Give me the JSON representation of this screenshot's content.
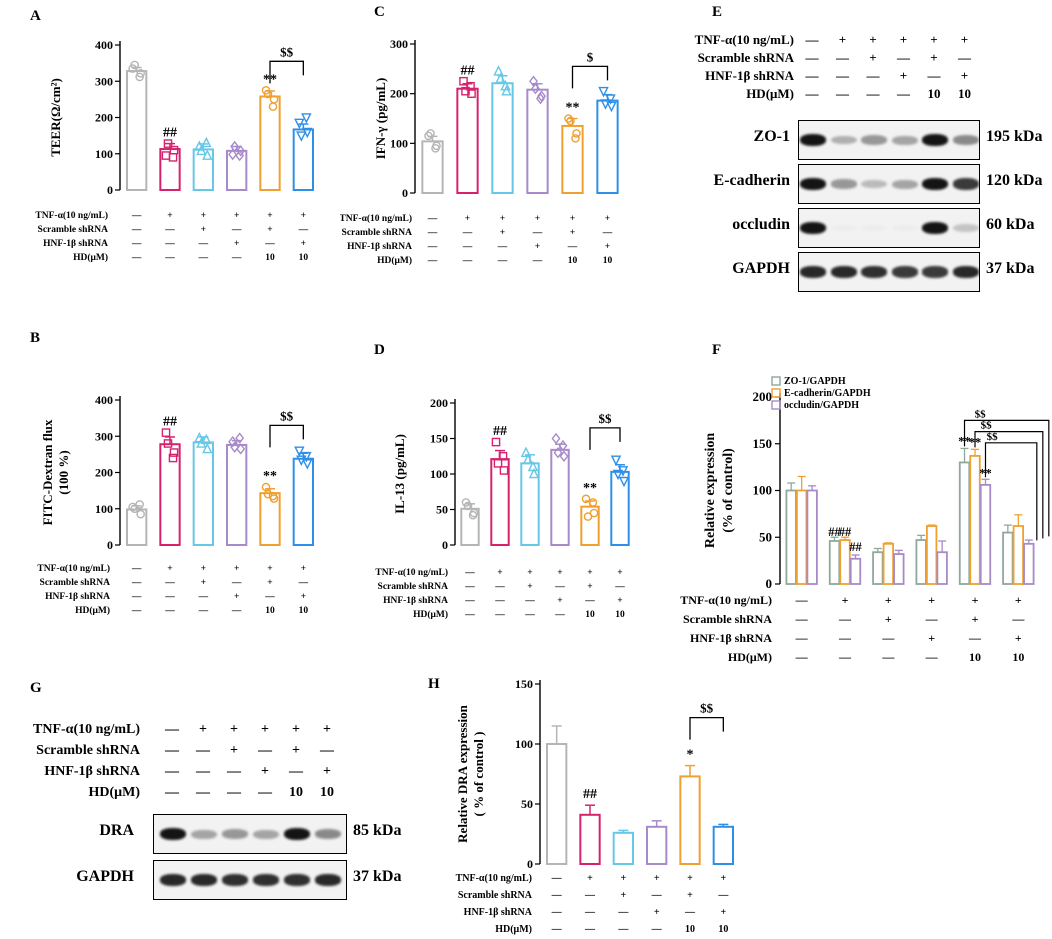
{
  "colors": {
    "control": "#b5b5b5",
    "tnf": "#d6226e",
    "scramble": "#67c7e6",
    "hnf": "#a78ac9",
    "hd_scramble": "#f0a030",
    "hd_hnf": "#2f8fe8",
    "zo1": "#8fa89a",
    "ecad": "#f0a030",
    "occl": "#a78ac9"
  },
  "conditions": {
    "rows": [
      {
        "label": "TNF-α(10 ng/mL)",
        "values": [
          "—",
          "+",
          "+",
          "+",
          "+",
          "+"
        ]
      },
      {
        "label": "Scramble shRNA",
        "values": [
          "—",
          "—",
          "+",
          "—",
          "+",
          "—"
        ]
      },
      {
        "label": "HNF-1β shRNA",
        "values": [
          "—",
          "—",
          "—",
          "+",
          "—",
          "+"
        ]
      },
      {
        "label": "HD(μM)",
        "values": [
          "—",
          "—",
          "—",
          "—",
          "10",
          "10"
        ]
      }
    ]
  },
  "blot_e": {
    "label": "E",
    "header": {
      "rows": [
        {
          "label": "TNF-α(10 ng/mL)",
          "values": [
            "—",
            "+",
            "+",
            "+",
            "+",
            "+"
          ]
        },
        {
          "label": "Scramble shRNA",
          "values": [
            "—",
            "—",
            "+",
            "—",
            "+",
            "—"
          ]
        },
        {
          "label": "HNF-1β shRNA",
          "values": [
            "—",
            "—",
            "—",
            "+",
            "—",
            "+"
          ]
        },
        {
          "label": "HD(μM)",
          "values": [
            "—",
            "—",
            "—",
            "—",
            "10",
            "10"
          ]
        }
      ]
    },
    "rows": [
      {
        "protein": "ZO-1",
        "size": "195 kDa",
        "intensity": [
          0.95,
          0.45,
          0.55,
          0.5,
          0.95,
          0.6
        ]
      },
      {
        "protein": "E-cadherin",
        "size": "120 kDa",
        "intensity": [
          0.95,
          0.55,
          0.4,
          0.5,
          0.95,
          0.85
        ]
      },
      {
        "protein": "occludin",
        "size": "60 kDa",
        "intensity": [
          0.95,
          0.05,
          0.05,
          0.05,
          0.95,
          0.35
        ]
      },
      {
        "protein": "GAPDH",
        "size": "37 kDa",
        "intensity": [
          0.9,
          0.9,
          0.88,
          0.85,
          0.85,
          0.9
        ]
      }
    ]
  },
  "blot_g": {
    "label": "G",
    "header": {
      "rows": [
        {
          "label": "TNF-α(10 ng/mL)",
          "values": [
            "—",
            "+",
            "+",
            "+",
            "+",
            "+"
          ]
        },
        {
          "label": "Scramble shRNA",
          "values": [
            "—",
            "—",
            "+",
            "—",
            "+",
            "—"
          ]
        },
        {
          "label": "HNF-1β shRNA",
          "values": [
            "—",
            "—",
            "—",
            "+",
            "—",
            "+"
          ]
        },
        {
          "label": "HD(μM)",
          "values": [
            "—",
            "—",
            "—",
            "—",
            "10",
            "10"
          ]
        }
      ]
    },
    "rows": [
      {
        "protein": "DRA",
        "size": "85 kDa",
        "intensity": [
          0.95,
          0.5,
          0.55,
          0.5,
          0.95,
          0.6
        ]
      },
      {
        "protein": "GAPDH",
        "size": "37 kDa",
        "intensity": [
          0.9,
          0.9,
          0.88,
          0.88,
          0.88,
          0.9
        ]
      }
    ]
  },
  "chart_data": [
    {
      "panel": "A",
      "type": "bar",
      "ylabel": "TEER(Ω/cm²)",
      "ylim": [
        0,
        400
      ],
      "yticks": [
        0,
        100,
        200,
        300,
        400
      ],
      "values": [
        328,
        113,
        112,
        108,
        258,
        167
      ],
      "errors": [
        10,
        15,
        15,
        12,
        15,
        15
      ],
      "points": [
        [
          335,
          322,
          345,
          312
        ],
        [
          95,
          110,
          128,
          90
        ],
        [
          120,
          95,
          108,
          130
        ],
        [
          98,
          108,
          120,
          95
        ],
        [
          275,
          250,
          265,
          230
        ],
        [
          185,
          160,
          150,
          200
        ]
      ],
      "annotations": [
        {
          "bar": 1,
          "text": "##"
        },
        {
          "bar": 4,
          "text": "**"
        }
      ],
      "bracket": {
        "from": 4,
        "to": 5,
        "text": "$$",
        "y": 355
      }
    },
    {
      "panel": "B",
      "type": "bar",
      "ylabel": "FITC-Dextran  flux",
      "ylabel2": "(100 %)",
      "ylim": [
        0,
        400
      ],
      "yticks": [
        0,
        100,
        200,
        300,
        400
      ],
      "values": [
        98,
        278,
        283,
        276,
        143,
        238
      ],
      "errors": [
        10,
        20,
        15,
        12,
        12,
        15
      ],
      "points": [
        [
          105,
          85,
          100,
          112
        ],
        [
          310,
          255,
          280,
          240
        ],
        [
          295,
          265,
          280,
          290
        ],
        [
          285,
          265,
          270,
          295
        ],
        [
          160,
          128,
          140,
          135
        ],
        [
          260,
          225,
          235,
          245
        ]
      ],
      "annotations": [
        {
          "bar": 1,
          "text": "##"
        },
        {
          "bar": 4,
          "text": "**"
        }
      ],
      "bracket": {
        "from": 4,
        "to": 5,
        "text": "$$",
        "y": 330
      }
    },
    {
      "panel": "C",
      "type": "bar",
      "ylabel": "IFN-γ (pg/mL)",
      "ylim": [
        0,
        300
      ],
      "yticks": [
        0,
        100,
        200,
        300
      ],
      "values": [
        104,
        210,
        221,
        208,
        135,
        186
      ],
      "errors": [
        10,
        10,
        15,
        12,
        15,
        12
      ],
      "points": [
        [
          115,
          95,
          120,
          90
        ],
        [
          225,
          200,
          205,
          215
        ],
        [
          245,
          205,
          230,
          215
        ],
        [
          225,
          195,
          210,
          190
        ],
        [
          150,
          120,
          145,
          110
        ],
        [
          205,
          175,
          180,
          190
        ]
      ],
      "annotations": [
        {
          "bar": 1,
          "text": "##"
        },
        {
          "bar": 4,
          "text": "**"
        }
      ],
      "bracket": {
        "from": 4,
        "to": 5,
        "text": "$",
        "y": 255
      }
    },
    {
      "panel": "D",
      "type": "bar",
      "ylabel": "IL-13 (pg/mL)",
      "ylim": [
        0,
        200
      ],
      "yticks": [
        0,
        50,
        100,
        150,
        200
      ],
      "values": [
        51,
        121,
        115,
        134,
        54,
        103
      ],
      "errors": [
        7,
        12,
        12,
        8,
        8,
        10
      ],
      "points": [
        [
          60,
          45,
          55,
          42
        ],
        [
          145,
          105,
          115,
          125
        ],
        [
          130,
          100,
          120,
          110
        ],
        [
          150,
          125,
          130,
          140
        ],
        [
          65,
          45,
          40,
          60
        ],
        [
          120,
          90,
          100,
          105
        ]
      ],
      "annotations": [
        {
          "bar": 1,
          "text": "##"
        },
        {
          "bar": 4,
          "text": "**"
        }
      ],
      "bracket": {
        "from": 4,
        "to": 5,
        "text": "$$",
        "y": 165
      }
    },
    {
      "panel": "F",
      "type": "bar",
      "ylabel": "Relative expression",
      "ylabel2": "(% of control)",
      "ylim": [
        0,
        200
      ],
      "yticks": [
        0,
        50,
        100,
        150,
        200
      ],
      "legend": [
        "ZO-1/GAPDH",
        "E-cadherin/GAPDH",
        "occludin/GAPDH"
      ],
      "series": [
        {
          "name": "ZO-1/GAPDH",
          "values": [
            100,
            46,
            34,
            47,
            130,
            55
          ],
          "errors": [
            8,
            4,
            4,
            5,
            15,
            8
          ]
        },
        {
          "name": "E-cadherin/GAPDH",
          "values": [
            100,
            47,
            43,
            62,
            137,
            62
          ],
          "errors": [
            15,
            3,
            1,
            1,
            7,
            12
          ]
        },
        {
          "name": "occludin/GAPDH",
          "values": [
            100,
            27,
            32,
            34,
            106,
            43
          ],
          "errors": [
            5,
            4,
            4,
            12,
            6,
            4
          ]
        }
      ],
      "annotations": [
        {
          "group": 1,
          "series": 0,
          "text": "##"
        },
        {
          "group": 1,
          "series": 1,
          "text": "##"
        },
        {
          "group": 1,
          "series": 2,
          "text": "##"
        },
        {
          "group": 4,
          "series": 0,
          "text": "**"
        },
        {
          "group": 4,
          "series": 1,
          "text": "**"
        },
        {
          "group": 4,
          "series": 2,
          "text": "**"
        }
      ],
      "brackets": [
        {
          "text": "$$"
        },
        {
          "text": "$$"
        },
        {
          "text": "$$"
        }
      ]
    },
    {
      "panel": "H",
      "type": "bar",
      "ylabel": "Relative DRA expression",
      "ylabel2": "( % of control )",
      "ylim": [
        0,
        150
      ],
      "yticks": [
        0,
        50,
        100,
        150
      ],
      "values": [
        100,
        41,
        26,
        31,
        73,
        31
      ],
      "errors": [
        15,
        8,
        2,
        5,
        9,
        2
      ],
      "annotations": [
        {
          "bar": 1,
          "text": "##"
        },
        {
          "bar": 4,
          "text": "*"
        }
      ],
      "bracket": {
        "from": 4,
        "to": 5,
        "text": "$$",
        "y": 122
      }
    }
  ]
}
